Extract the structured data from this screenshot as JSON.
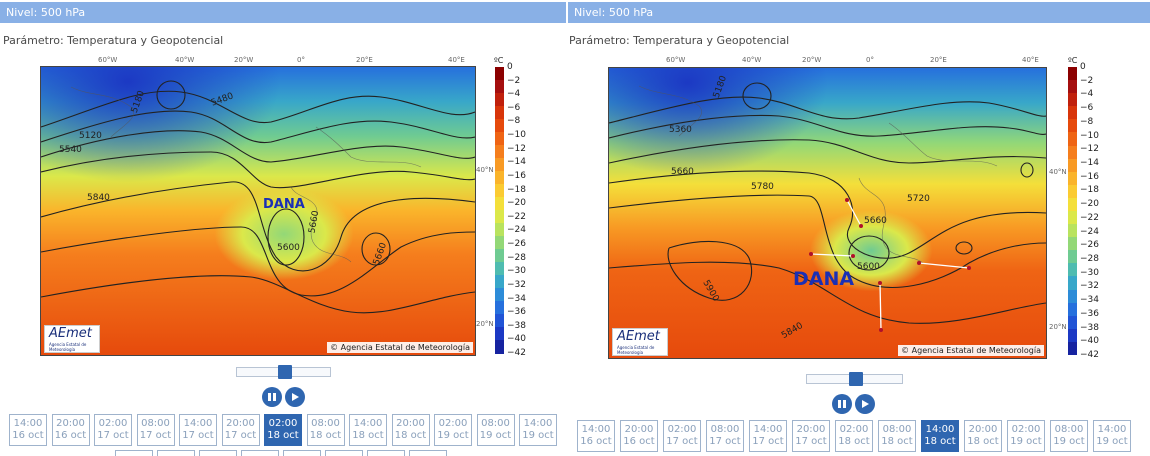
{
  "left": {
    "level": "Nivel: 500 hPa",
    "parameter": "Parámetro: Temperatura y Geopotencial",
    "lon_labels": [
      "60°W",
      "40°W",
      "20°W",
      "0°",
      "20°E",
      "40°E"
    ],
    "lat_labels": [
      "40°N",
      "20°N"
    ],
    "contour_labels": [
      "5180",
      "5480",
      "5120",
      "5540",
      "5840",
      "5660",
      "5600",
      "5660"
    ],
    "dana_label": "DANA",
    "credit": "© Agencia Estatal de Meteorología",
    "logo": "AEmet",
    "logo_sub": "Agencia Estatal de Meteorología",
    "timestamps": [
      {
        "time": "14:00",
        "date": "16 oct"
      },
      {
        "time": "20:00",
        "date": "16 oct"
      },
      {
        "time": "02:00",
        "date": "17 oct"
      },
      {
        "time": "08:00",
        "date": "17 oct"
      },
      {
        "time": "14:00",
        "date": "17 oct"
      },
      {
        "time": "20:00",
        "date": "17 oct"
      },
      {
        "time": "02:00",
        "date": "18 oct",
        "active": true
      },
      {
        "time": "08:00",
        "date": "18 oct"
      },
      {
        "time": "14:00",
        "date": "18 oct"
      },
      {
        "time": "20:00",
        "date": "18 oct"
      },
      {
        "time": "02:00",
        "date": "19 oct"
      },
      {
        "time": "08:00",
        "date": "19 oct"
      },
      {
        "time": "14:00",
        "date": "19 oct"
      }
    ],
    "slider_position": 0.5
  },
  "right": {
    "level": "Nivel: 500 hPa",
    "parameter": "Parámetro: Temperatura y Geopotencial",
    "lon_labels": [
      "60°W",
      "40°W",
      "20°W",
      "0°",
      "20°E",
      "40°E"
    ],
    "lat_labels": [
      "40°N",
      "20°N"
    ],
    "contour_labels": [
      "5180",
      "5360",
      "5660",
      "5780",
      "5720",
      "5660",
      "5600",
      "5900",
      "5840"
    ],
    "dana_label": "DANA",
    "credit": "© Agencia Estatal de Meteorología",
    "logo": "AEmet",
    "logo_sub": "Agencia Estatal de Meteorología",
    "timestamps": [
      {
        "time": "14:00",
        "date": "16 oct"
      },
      {
        "time": "20:00",
        "date": "16 oct"
      },
      {
        "time": "02:00",
        "date": "17 oct"
      },
      {
        "time": "08:00",
        "date": "17 oct"
      },
      {
        "time": "14:00",
        "date": "17 oct"
      },
      {
        "time": "20:00",
        "date": "17 oct"
      },
      {
        "time": "02:00",
        "date": "18 oct"
      },
      {
        "time": "08:00",
        "date": "18 oct"
      },
      {
        "time": "14:00",
        "date": "18 oct",
        "active": true
      },
      {
        "time": "20:00",
        "date": "18 oct"
      },
      {
        "time": "02:00",
        "date": "19 oct"
      },
      {
        "time": "08:00",
        "date": "19 oct"
      },
      {
        "time": "14:00",
        "date": "19 oct"
      }
    ],
    "slider_position": 0.5
  },
  "colorbar": {
    "unit": "ºC",
    "labels": [
      "0",
      "−2",
      "−4",
      "−6",
      "−8",
      "−10",
      "−12",
      "−14",
      "−16",
      "−18",
      "−20",
      "−22",
      "−24",
      "−26",
      "−28",
      "−30",
      "−32",
      "−34",
      "−36",
      "−38",
      "−40",
      "−42"
    ],
    "colors": [
      "#8b0000",
      "#a50f0f",
      "#c0200c",
      "#d8350a",
      "#e64a0c",
      "#ef6414",
      "#f57e1d",
      "#f89a24",
      "#fab42b",
      "#fbcb32",
      "#f4df3a",
      "#dbe84a",
      "#b9e35e",
      "#93d877",
      "#6fcb92",
      "#4fbcb0",
      "#38a7c9",
      "#2d8cd8",
      "#2670dd",
      "#2154d6",
      "#1c39c4",
      "#1623a0"
    ]
  },
  "controls": {
    "pause_icon": "pause-icon",
    "play_icon": "play-icon"
  }
}
